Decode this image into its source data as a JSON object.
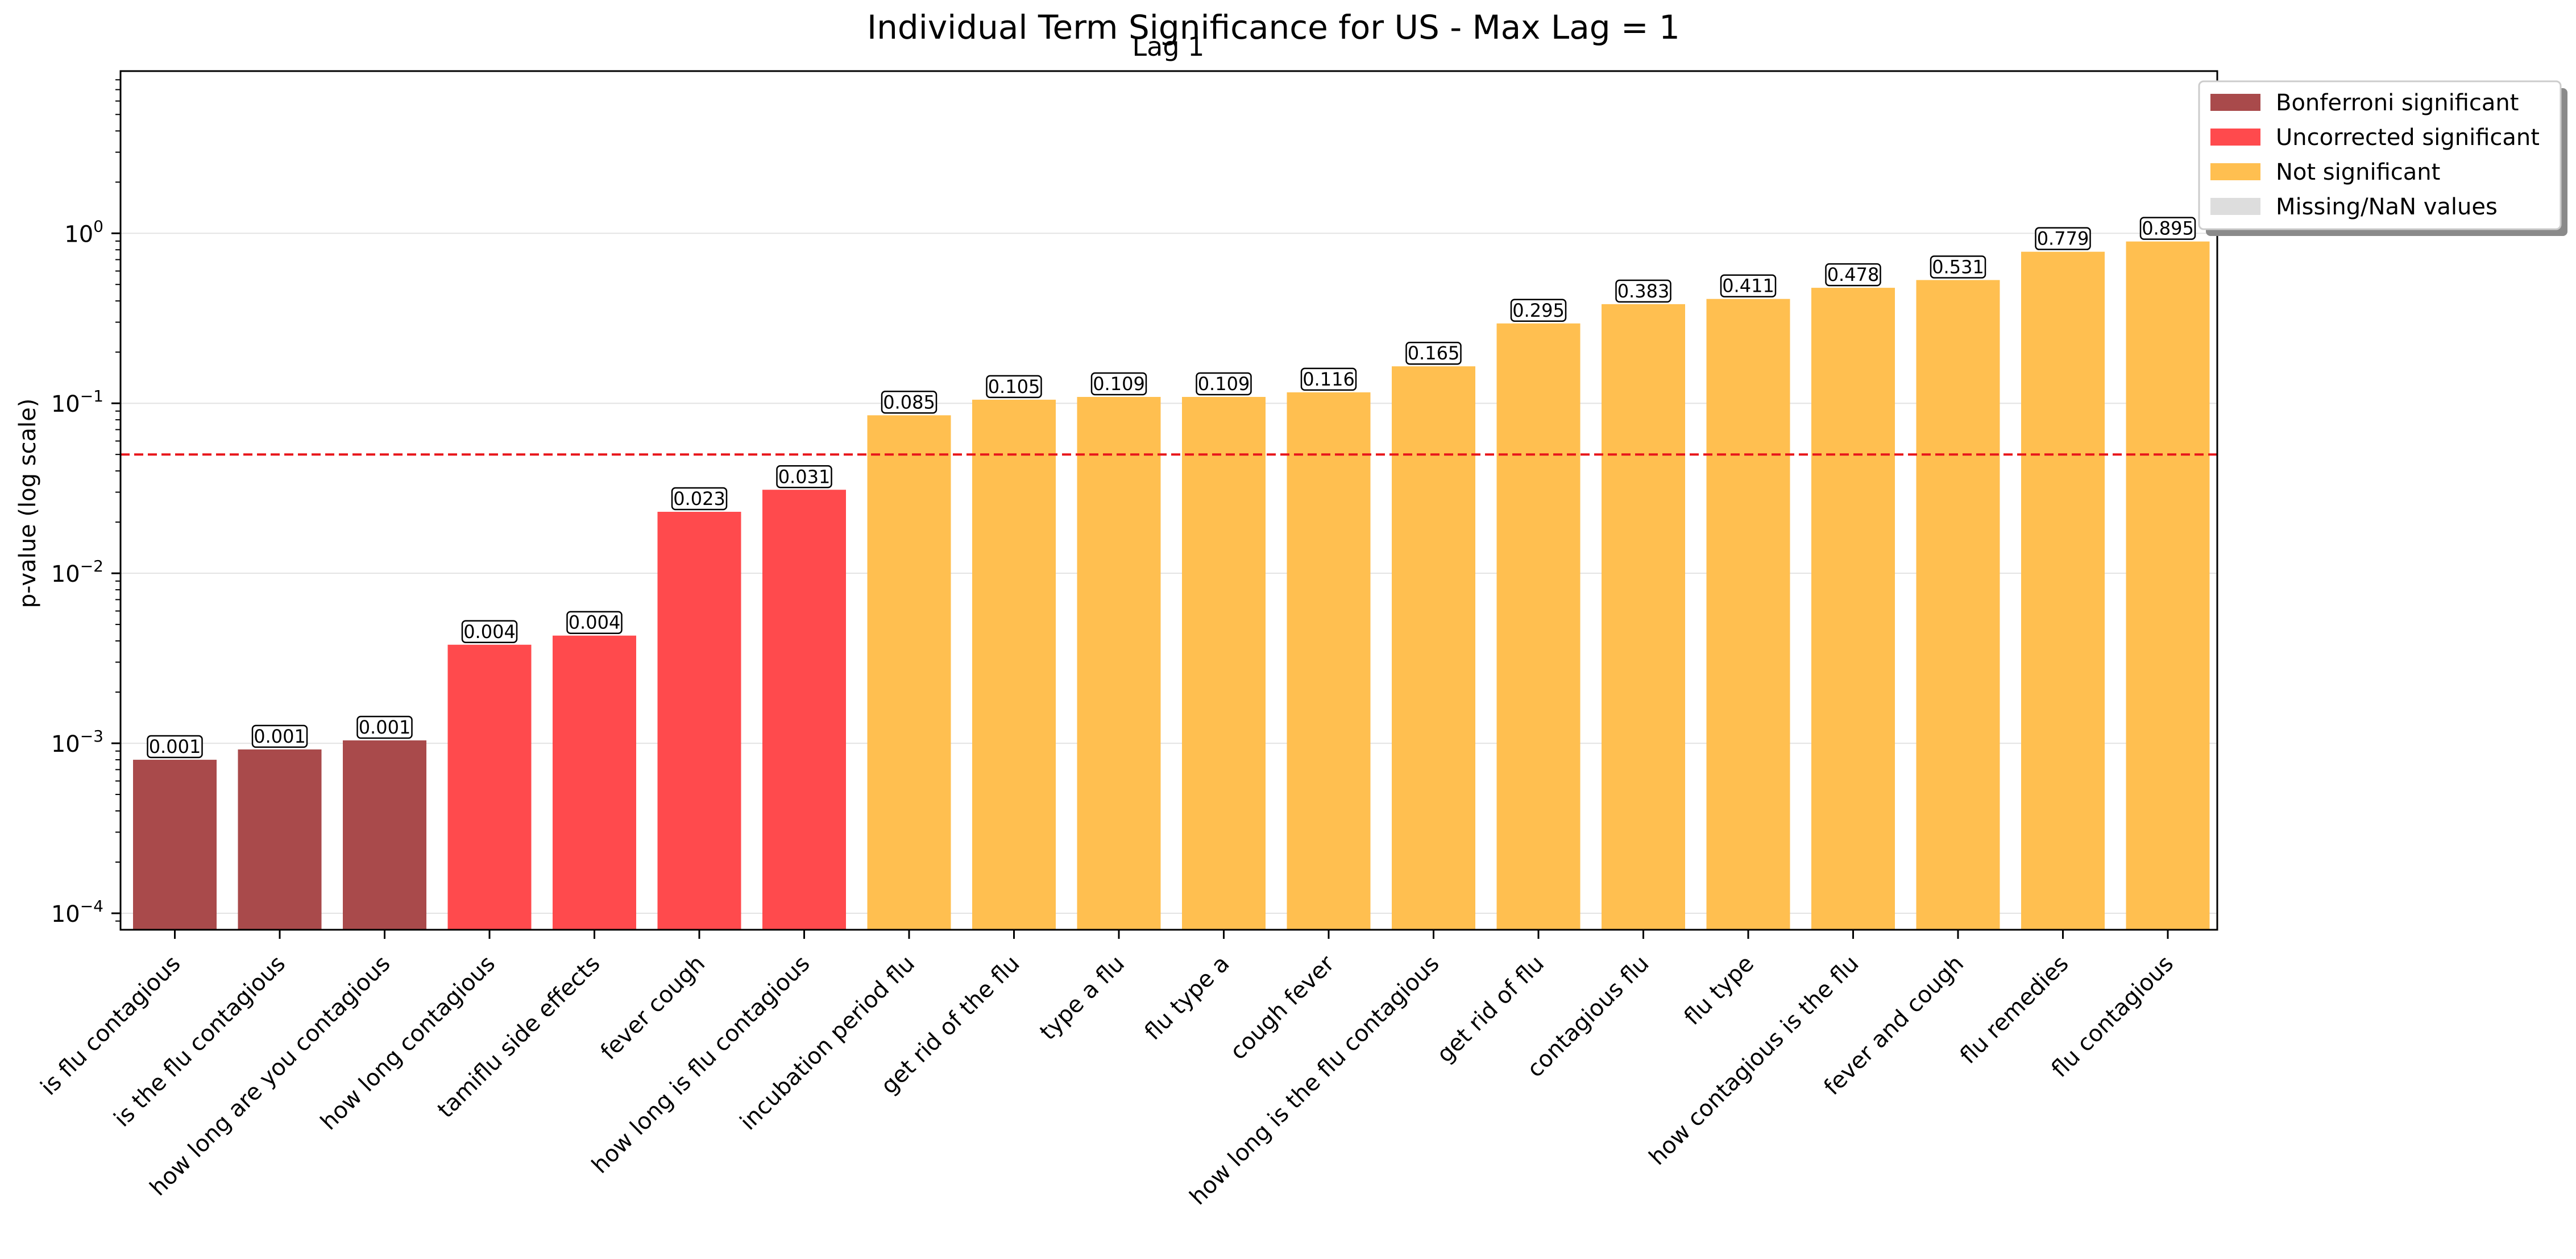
{
  "chart_data": {
    "type": "bar",
    "title": "Individual Term Significance for US - Max Lag = 1",
    "subtitle": "Lag 1",
    "ylabel": "p-value (log scale)",
    "xlabel": "",
    "yscale": "log",
    "ylim": [
      8e-05,
      9
    ],
    "y_ticks": [
      {
        "value": 0.0001,
        "base": "10",
        "exp": "−4"
      },
      {
        "value": 0.001,
        "base": "10",
        "exp": "−3"
      },
      {
        "value": 0.01,
        "base": "10",
        "exp": "−2"
      },
      {
        "value": 0.1,
        "base": "10",
        "exp": "−1"
      },
      {
        "value": 1,
        "base": "10",
        "exp": "0"
      }
    ],
    "threshold": {
      "value": 0.05,
      "color": "#e8161b",
      "style": "dashed"
    },
    "grid": true,
    "legend_position": "top-right",
    "colors": {
      "bonferroni": "#a94a4b",
      "uncorrected": "#ff4a4d",
      "not_significant": "#ffbf50",
      "missing": "#dddddd"
    },
    "legend": [
      {
        "key": "bonferroni",
        "label": "Bonferroni significant"
      },
      {
        "key": "uncorrected",
        "label": "Uncorrected significant"
      },
      {
        "key": "not_significant",
        "label": "Not significant"
      },
      {
        "key": "missing",
        "label": "Missing/NaN values"
      }
    ],
    "bars": [
      {
        "category": "is flu contagious",
        "value": 0.0008,
        "label": "0.001",
        "group": "bonferroni"
      },
      {
        "category": "is the flu contagious",
        "value": 0.00092,
        "label": "0.001",
        "group": "bonferroni"
      },
      {
        "category": "how long are you contagious",
        "value": 0.00104,
        "label": "0.001",
        "group": "bonferroni"
      },
      {
        "category": "how long contagious",
        "value": 0.0038,
        "label": "0.004",
        "group": "uncorrected"
      },
      {
        "category": "tamiflu side effects",
        "value": 0.0043,
        "label": "0.004",
        "group": "uncorrected"
      },
      {
        "category": "fever cough",
        "value": 0.023,
        "label": "0.023",
        "group": "uncorrected"
      },
      {
        "category": "how long is flu contagious",
        "value": 0.031,
        "label": "0.031",
        "group": "uncorrected"
      },
      {
        "category": "incubation period flu",
        "value": 0.085,
        "label": "0.085",
        "group": "not_significant"
      },
      {
        "category": "get rid of the flu",
        "value": 0.105,
        "label": "0.105",
        "group": "not_significant"
      },
      {
        "category": "type a flu",
        "value": 0.109,
        "label": "0.109",
        "group": "not_significant"
      },
      {
        "category": "flu type a",
        "value": 0.109,
        "label": "0.109",
        "group": "not_significant"
      },
      {
        "category": "cough fever",
        "value": 0.116,
        "label": "0.116",
        "group": "not_significant"
      },
      {
        "category": "how long is the flu contagious",
        "value": 0.165,
        "label": "0.165",
        "group": "not_significant"
      },
      {
        "category": "get rid of flu",
        "value": 0.295,
        "label": "0.295",
        "group": "not_significant"
      },
      {
        "category": "contagious flu",
        "value": 0.383,
        "label": "0.383",
        "group": "not_significant"
      },
      {
        "category": "flu type",
        "value": 0.411,
        "label": "0.411",
        "group": "not_significant"
      },
      {
        "category": "how contagious is the flu",
        "value": 0.478,
        "label": "0.478",
        "group": "not_significant"
      },
      {
        "category": "fever and cough",
        "value": 0.531,
        "label": "0.531",
        "group": "not_significant"
      },
      {
        "category": "flu remedies",
        "value": 0.779,
        "label": "0.779",
        "group": "not_significant"
      },
      {
        "category": "flu contagious",
        "value": 0.895,
        "label": "0.895",
        "group": "not_significant"
      }
    ]
  }
}
